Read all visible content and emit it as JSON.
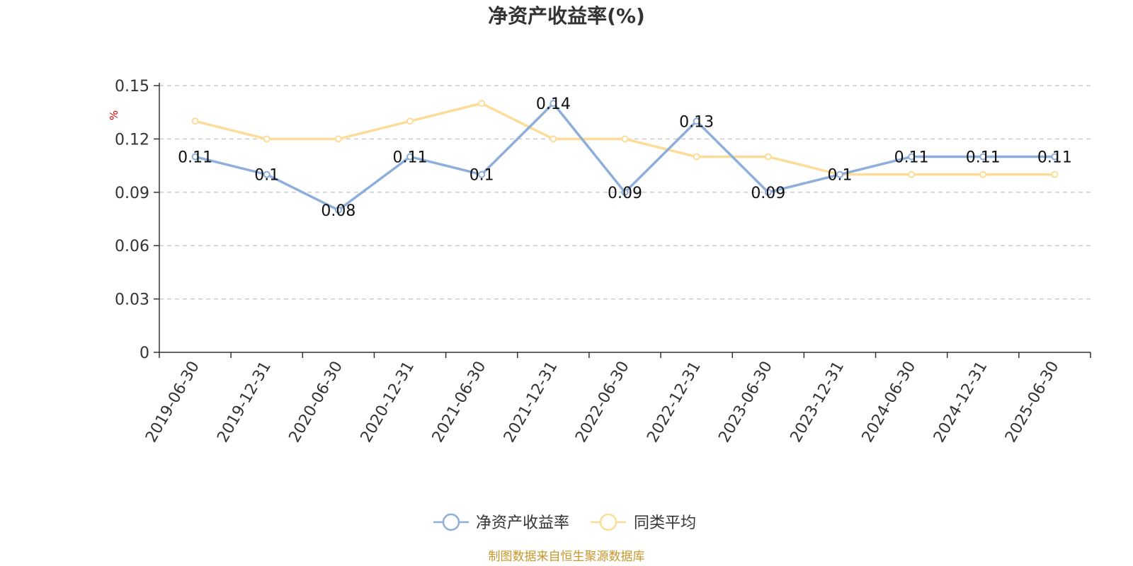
{
  "chart_data": {
    "type": "line",
    "title": "净资产收益率(%)",
    "ylabel": "%",
    "xlabel": "",
    "ylim": [
      0,
      0.15
    ],
    "yticks": [
      "0",
      "0.03",
      "0.06",
      "0.09",
      "0.12",
      "0.15"
    ],
    "grid": true,
    "legend_position": "bottom",
    "categories": [
      "2019-06-30",
      "2019-12-31",
      "2020-06-30",
      "2020-12-31",
      "2021-06-30",
      "2021-12-31",
      "2022-06-30",
      "2022-12-31",
      "2023-06-30",
      "2023-12-31",
      "2024-06-30",
      "2024-12-31",
      "2025-06-30"
    ],
    "series": [
      {
        "name": "净资产收益率",
        "color": "#8eaedb",
        "values": [
          0.11,
          0.1,
          0.08,
          0.11,
          0.1,
          0.14,
          0.09,
          0.13,
          0.09,
          0.1,
          0.11,
          0.11,
          0.11
        ],
        "labels": [
          "0.11",
          "0.1",
          "0.08",
          "0.11",
          "0.1",
          "0.14",
          "0.09",
          "0.13",
          "0.09",
          "0.1",
          "0.11",
          "0.11",
          "0.11"
        ]
      },
      {
        "name": "同类平均",
        "color": "#fddc98",
        "values": [
          0.13,
          0.12,
          0.12,
          0.13,
          0.14,
          0.12,
          0.12,
          0.11,
          0.11,
          0.1,
          0.1,
          0.1,
          0.1
        ]
      }
    ],
    "source_note": "制图数据来自恒生聚源数据库"
  }
}
